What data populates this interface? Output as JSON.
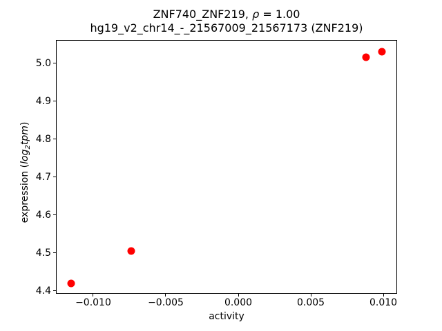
{
  "chart_data": {
    "type": "scatter",
    "title": "ZNF740_ZNF219, ρ = 1.00",
    "title_parts": {
      "prefix": "ZNF740_ZNF219, ",
      "rho": "ρ",
      "suffix": " = 1.00"
    },
    "subtitle": "hg19_v2_chr14_-_21567009_21567173 (ZNF219)",
    "xlabel": "activity",
    "ylabel": "expression (log₂tpm)",
    "ylabel_parts": {
      "prefix": "expression (",
      "log": "log",
      "sub": "2",
      "tpm": "tpm",
      "suffix": ")"
    },
    "marker_color": "#ff0000",
    "axis_color": "#000000",
    "background_color": "#ffffff",
    "grid": false,
    "legend": false,
    "xlim": [
      -0.01257,
      0.01095
    ],
    "ylim": [
      4.392,
      5.061
    ],
    "xticks": [
      -0.01,
      -0.005,
      0.0,
      0.005,
      0.01
    ],
    "xtick_labels": [
      "−0.010",
      "−0.005",
      "0.000",
      "0.005",
      "0.010"
    ],
    "yticks": [
      4.4,
      4.5,
      4.6,
      4.7,
      4.8,
      4.9,
      5.0
    ],
    "ytick_labels": [
      "4.4",
      "4.5",
      "4.6",
      "4.7",
      "4.8",
      "4.9",
      "5.0"
    ],
    "points": [
      {
        "x": -0.0115,
        "y": 4.42
      },
      {
        "x": -0.0074,
        "y": 4.504
      },
      {
        "x": 0.0088,
        "y": 5.015
      },
      {
        "x": 0.0099,
        "y": 5.031
      }
    ]
  }
}
